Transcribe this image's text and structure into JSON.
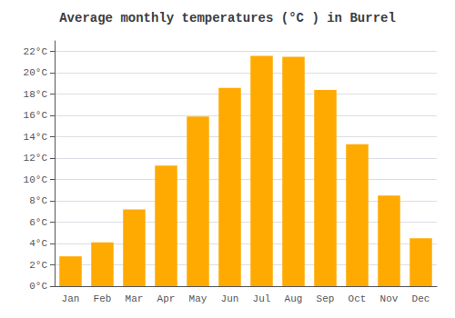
{
  "chart_data": {
    "type": "bar",
    "title": "Average monthly temperatures (°C ) in Burrel",
    "categories": [
      "Jan",
      "Feb",
      "Mar",
      "Apr",
      "May",
      "Jun",
      "Jul",
      "Aug",
      "Sep",
      "Oct",
      "Nov",
      "Dec"
    ],
    "values": [
      2.8,
      4.1,
      7.2,
      11.3,
      15.9,
      18.6,
      21.6,
      21.5,
      18.4,
      13.3,
      8.5,
      4.5
    ],
    "color": "#FFAA00",
    "ylim": [
      0,
      23
    ],
    "yticks": [
      {
        "value": 0,
        "label": "0°C"
      },
      {
        "value": 2,
        "label": "2°C"
      },
      {
        "value": 4,
        "label": "4°C"
      },
      {
        "value": 6,
        "label": "6°C"
      },
      {
        "value": 8,
        "label": "8°C"
      },
      {
        "value": 10,
        "label": "10°C"
      },
      {
        "value": 12,
        "label": "12°C"
      },
      {
        "value": 14,
        "label": "14°C"
      },
      {
        "value": 16,
        "label": "16°C"
      },
      {
        "value": 18,
        "label": "18°C"
      },
      {
        "value": 20,
        "label": "20°C"
      },
      {
        "value": 22,
        "label": "22°C"
      }
    ],
    "grid": true
  }
}
